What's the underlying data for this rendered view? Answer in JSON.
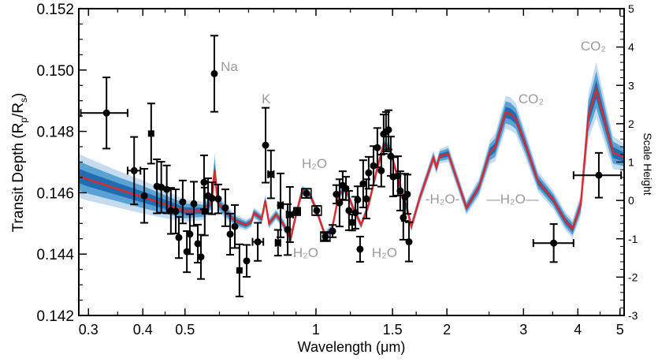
{
  "chart_data": {
    "type": "scatter",
    "title": "",
    "xlabel": "Wavelength (μm)",
    "ylabel": "Transit Depth (R",
    "ylabel_sub1": "p",
    "ylabel_mid": "/R",
    "ylabel_sub2": "s",
    "ylabel_end": ")",
    "y2label": "Scale Height",
    "xscale": "log",
    "xlim": [
      0.285,
      5.11
    ],
    "ylim": [
      0.142,
      0.152
    ],
    "y2lim": [
      -3,
      5
    ],
    "grid": false,
    "xticks": [
      0.3,
      0.4,
      0.5,
      1,
      1.5,
      2,
      3,
      4,
      5
    ],
    "xtick_labels": [
      "0.3",
      "0.4",
      "0.5",
      "1",
      "1.5",
      "2",
      "3",
      "4",
      "5"
    ],
    "xminor_ticks": [
      0.35,
      0.45,
      0.6,
      0.7,
      0.8,
      0.9,
      1.2,
      1.7,
      2.5,
      3.5,
      4.5
    ],
    "yticks": [
      0.142,
      0.144,
      0.146,
      0.148,
      0.15,
      0.152
    ],
    "ytick_labels": [
      "0.142",
      "0.144",
      "0.146",
      "0.148",
      "0.150",
      "0.152"
    ],
    "y2ticks": [
      -3,
      -2,
      -1,
      0,
      1,
      2,
      3,
      4,
      5
    ],
    "y2tick_labels": [
      "-3",
      "-2",
      "-1",
      "0",
      "1",
      "2",
      "3",
      "4",
      "5"
    ],
    "colors": {
      "model": "#e0282a",
      "band1": "#1f6db0",
      "band2": "#5aa2d4",
      "band3": "#c5dcef",
      "points": "#000000",
      "annotation": "#9a9a9a"
    },
    "model": {
      "x": [
        0.285,
        0.3,
        0.35,
        0.4,
        0.45,
        0.5,
        0.55,
        0.575,
        0.585,
        0.595,
        0.62,
        0.65,
        0.69,
        0.71,
        0.72,
        0.75,
        0.765,
        0.78,
        0.81,
        0.84,
        0.875,
        0.9,
        0.93,
        0.97,
        1.0,
        1.05,
        1.09,
        1.13,
        1.17,
        1.22,
        1.27,
        1.32,
        1.38,
        1.43,
        1.48,
        1.55,
        1.62,
        1.657,
        1.735,
        1.862,
        1.893,
        1.925,
        2.015,
        2.218,
        2.37,
        2.51,
        2.58,
        2.73,
        2.8,
        2.88,
        3.03,
        3.24,
        3.51,
        3.74,
        3.89,
        4.06,
        4.23,
        4.41,
        4.82,
        5.11
      ],
      "y": [
        0.14655,
        0.14643,
        0.14612,
        0.14586,
        0.14562,
        0.14541,
        0.14541,
        0.14568,
        0.14675,
        0.14568,
        0.14539,
        0.1451,
        0.14495,
        0.14505,
        0.14534,
        0.14515,
        0.14574,
        0.145,
        0.14529,
        0.145,
        0.14451,
        0.14529,
        0.14607,
        0.14592,
        0.14548,
        0.14461,
        0.14485,
        0.14597,
        0.14612,
        0.14548,
        0.14495,
        0.14558,
        0.14674,
        0.14757,
        0.14743,
        0.14635,
        0.14548,
        0.1449,
        0.14586,
        0.14714,
        0.14683,
        0.14719,
        0.14727,
        0.14551,
        0.14618,
        0.14732,
        0.14747,
        0.14862,
        0.14857,
        0.14842,
        0.14757,
        0.14636,
        0.14577,
        0.14509,
        0.14482,
        0.14559,
        0.1485,
        0.14936,
        0.14731,
        0.14716
      ],
      "sigma": [
        0.00024,
        0.00023,
        0.0002,
        0.00018,
        0.00015,
        0.00012,
        0.0001,
        0.0001,
        0.0002,
        0.0001,
        8e-05,
        7e-05,
        6e-05,
        6e-05,
        6e-05,
        6e-05,
        7e-05,
        6e-05,
        6e-05,
        6e-05,
        7e-05,
        6e-05,
        6e-05,
        5e-05,
        5e-05,
        5e-05,
        5e-05,
        5e-05,
        5e-05,
        5e-05,
        5e-05,
        5e-05,
        6e-05,
        6e-05,
        6e-05,
        6e-05,
        6e-05,
        6e-05,
        7e-05,
        8e-05,
        8e-05,
        8e-05,
        9e-05,
        8e-05,
        0.0001,
        0.00013,
        0.00015,
        0.00018,
        0.00018,
        0.00017,
        0.00014,
        0.00011,
        0.0001,
        0.0001,
        0.0001,
        0.00012,
        0.00025,
        0.0003,
        0.00018,
        0.00015
      ]
    },
    "points": [
      {
        "x": 0.33,
        "y": 0.1486,
        "yerr": 0.00116,
        "xerr": [
          0.288,
          0.369
        ]
      },
      {
        "x": 0.382,
        "y": 0.14672,
        "yerr": 0.0011,
        "xerr": [
          0.369,
          0.395
        ]
      },
      {
        "x": 0.403,
        "y": 0.1459,
        "yerr": 0.00088
      },
      {
        "x": 0.418,
        "y": 0.14793,
        "yerr": 0.00098,
        "marker": "square"
      },
      {
        "x": 0.431,
        "y": 0.14621,
        "yerr": 0.00088
      },
      {
        "x": 0.441,
        "y": 0.14618,
        "yerr": 0.00083
      },
      {
        "x": 0.454,
        "y": 0.14611,
        "yerr": 0.00078
      },
      {
        "x": 0.464,
        "y": 0.14541,
        "yerr": 0.00075
      },
      {
        "x": 0.476,
        "y": 0.14539,
        "yerr": 0.00072
      },
      {
        "x": 0.484,
        "y": 0.14454,
        "yerr": 0.00067
      },
      {
        "x": 0.494,
        "y": 0.1457,
        "yerr": 0.0007
      },
      {
        "x": 0.505,
        "y": 0.14408,
        "yerr": 0.00067
      },
      {
        "x": 0.513,
        "y": 0.14465,
        "yerr": 0.00065
      },
      {
        "x": 0.524,
        "y": 0.14564,
        "yerr": 0.00072
      },
      {
        "x": 0.535,
        "y": 0.14434,
        "yerr": 0.00062
      },
      {
        "x": 0.544,
        "y": 0.14391,
        "yerr": 0.00072
      },
      {
        "x": 0.553,
        "y": 0.14634,
        "yerr": 0.00088
      },
      {
        "x": 0.555,
        "y": 0.14539,
        "yerr": 0.00078,
        "marker": "square"
      },
      {
        "x": 0.565,
        "y": 0.1459,
        "yerr": 0.00057
      },
      {
        "x": 0.577,
        "y": 0.14582,
        "yerr": 0.00052
      },
      {
        "x": 0.584,
        "y": 0.14988,
        "yerr": 0.00124
      },
      {
        "x": 0.596,
        "y": 0.1458,
        "yerr": 0.00047
      },
      {
        "x": 0.619,
        "y": 0.14551,
        "yerr": 0.0006
      },
      {
        "x": 0.635,
        "y": 0.14465,
        "yerr": 0.00067
      },
      {
        "x": 0.651,
        "y": 0.1449,
        "yerr": 0.0007
      },
      {
        "x": 0.667,
        "y": 0.14347,
        "yerr": 0.00085,
        "marker": "square"
      },
      {
        "x": 0.693,
        "y": 0.14378,
        "yerr": 0.00052
      },
      {
        "x": 0.735,
        "y": 0.1444,
        "yerr": 0.00062,
        "xerr": [
          0.715,
          0.757
        ]
      },
      {
        "x": 0.766,
        "y": 0.14755,
        "yerr": 0.00122
      },
      {
        "x": 0.788,
        "y": 0.1466,
        "yerr": 0.00078,
        "xerr": [
          0.776,
          0.8
        ]
      },
      {
        "x": 0.818,
        "y": 0.14437,
        "yerr": 0.00042,
        "marker": "square",
        "xerr": [
          0.808,
          0.828
        ]
      },
      {
        "x": 0.829,
        "y": 0.14559,
        "yerr": 0.00104,
        "xerr": [
          0.818,
          0.84
        ]
      },
      {
        "x": 0.861,
        "y": 0.1448,
        "yerr": 0.00083
      },
      {
        "x": 0.871,
        "y": 0.14529,
        "yerr": 0.0009,
        "xerr": [
          0.856,
          0.886
        ]
      },
      {
        "x": 0.905,
        "y": 0.14539,
        "yerr": 0.00012,
        "xerr": [
          0.89,
          0.92
        ]
      },
      {
        "x": 0.951,
        "y": 0.14598,
        "yerr": 0.00015,
        "marker": "circle-square"
      },
      {
        "x": 1.004,
        "y": 0.14542,
        "yerr": 0.00015,
        "marker": "circle-square"
      },
      {
        "x": 1.051,
        "y": 0.14457,
        "yerr": 0.00012,
        "marker": "circle-square"
      },
      {
        "x": 1.092,
        "y": 0.14475,
        "yerr": 0.0002
      },
      {
        "x": 1.114,
        "y": 0.14595,
        "yerr": 0.0003
      },
      {
        "x": 1.133,
        "y": 0.14567,
        "yerr": 0.00077
      },
      {
        "x": 1.152,
        "y": 0.14624,
        "yerr": 0.00046
      },
      {
        "x": 1.172,
        "y": 0.14614,
        "yerr": 0.00038
      },
      {
        "x": 1.191,
        "y": 0.14542,
        "yerr": 0.00064
      },
      {
        "x": 1.211,
        "y": 0.14503,
        "yerr": 0.00026,
        "marker": "square"
      },
      {
        "x": 1.232,
        "y": 0.14535,
        "yerr": 0.00052
      },
      {
        "x": 1.247,
        "y": 0.14577,
        "yerr": 0.00044
      },
      {
        "x": 1.263,
        "y": 0.14416,
        "yerr": 0.00041
      },
      {
        "x": 1.284,
        "y": 0.14629,
        "yerr": 0.00077
      },
      {
        "x": 1.306,
        "y": 0.1458,
        "yerr": 0.00064
      },
      {
        "x": 1.322,
        "y": 0.14665,
        "yerr": 0.00052
      },
      {
        "x": 1.356,
        "y": 0.14688,
        "yerr": 0.00064
      },
      {
        "x": 1.384,
        "y": 0.14747,
        "yerr": 0.00064
      },
      {
        "x": 1.413,
        "y": 0.14672,
        "yerr": 0.00052
      },
      {
        "x": 1.431,
        "y": 0.14791,
        "yerr": 0.00064
      },
      {
        "x": 1.449,
        "y": 0.14799,
        "yerr": 0.00064
      },
      {
        "x": 1.468,
        "y": 0.14805,
        "yerr": 0.00064
      },
      {
        "x": 1.486,
        "y": 0.14719,
        "yerr": 0.00064
      },
      {
        "x": 1.505,
        "y": 0.14652,
        "yerr": 0.00064
      },
      {
        "x": 1.543,
        "y": 0.14655,
        "yerr": 0.00064
      },
      {
        "x": 1.562,
        "y": 0.14606,
        "yerr": 0.00064
      },
      {
        "x": 1.588,
        "y": 0.14519,
        "yerr": 0.00072
      },
      {
        "x": 1.602,
        "y": 0.14585,
        "yerr": 0.00077
      },
      {
        "x": 1.622,
        "y": 0.14595,
        "yerr": 0.00064
      },
      {
        "x": 1.636,
        "y": 0.1444,
        "yerr": 0.00064
      },
      {
        "x": 3.52,
        "y": 0.14436,
        "yerr": 0.00062,
        "xerr": [
          3.16,
          3.91
        ]
      },
      {
        "x": 4.47,
        "y": 0.14657,
        "yerr": 0.00073,
        "xerr": [
          3.91,
          5.03
        ]
      }
    ],
    "annotations": [
      {
        "text": "Na",
        "x": 0.604,
        "y": 0.14997
      },
      {
        "text": "K",
        "x": 0.75,
        "y": 0.14892
      },
      {
        "text": "H₂O",
        "x": 0.928,
        "y": 0.14681
      },
      {
        "text": "H₂O",
        "x": 0.886,
        "y": 0.1439
      },
      {
        "text": "H₂O",
        "x": 1.344,
        "y": 0.1439
      },
      {
        "text": "-H₂O-",
        "x": 1.785,
        "y": 0.14565
      },
      {
        "text": "—H₂O—",
        "x": 2.47,
        "y": 0.14565
      },
      {
        "text": "CO₂",
        "x": 2.92,
        "y": 0.14892
      },
      {
        "text": "CO₂",
        "x": 4.06,
        "y": 0.15064
      }
    ]
  }
}
